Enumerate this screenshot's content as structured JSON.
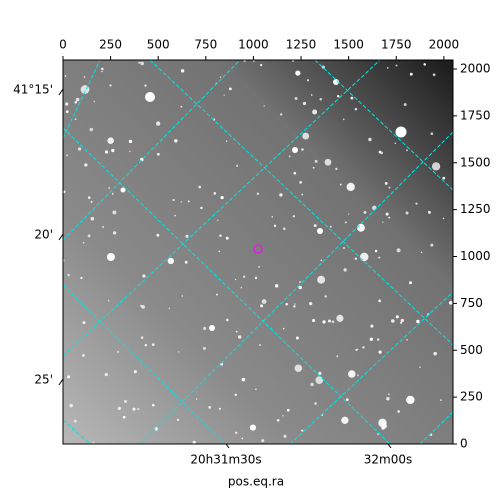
{
  "chart_data": {
    "type": "image",
    "xlabel": "pos.eq.ra",
    "xlim": [
      0,
      2048
    ],
    "ylim": [
      0,
      2048
    ],
    "xticks": [
      0,
      250,
      500,
      750,
      1000,
      1250,
      1500,
      1750,
      2000
    ],
    "yticks": [
      0,
      250,
      500,
      750,
      1000,
      1250,
      1500,
      1750,
      2000
    ],
    "dec_ticks": [
      {
        "value": 15,
        "label": "41°15'"
      },
      {
        "value": 20,
        "label": "20'"
      },
      {
        "value": 25,
        "label": "25'"
      }
    ],
    "ra_ticks": [
      {
        "value": 30,
        "label": "20h31m30s"
      },
      {
        "value": 60,
        "label": "32m00s"
      }
    ],
    "grid_color": "#00e5e5"
  }
}
